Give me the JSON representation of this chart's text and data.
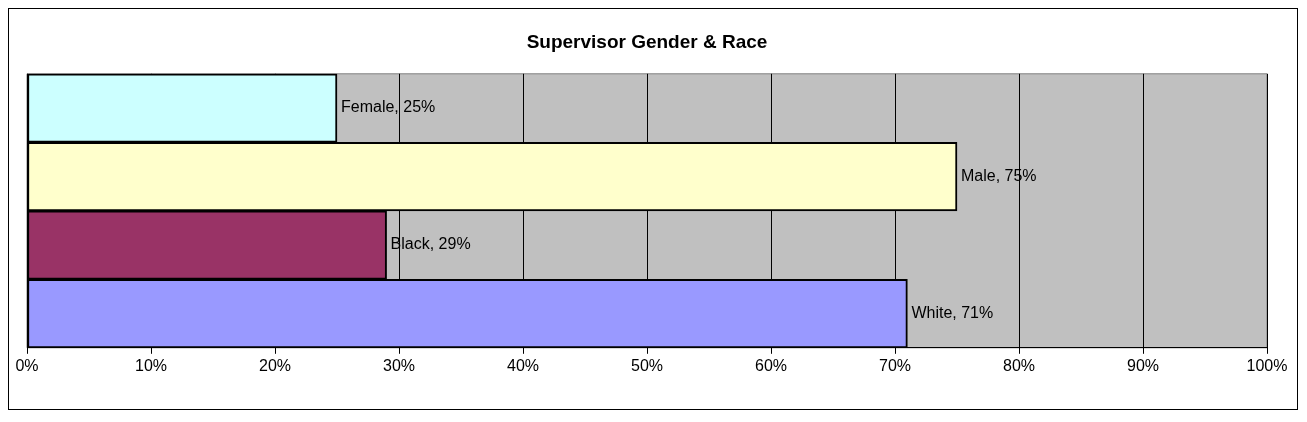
{
  "chart_data": {
    "type": "bar",
    "orientation": "horizontal",
    "title": "Supervisor Gender & Race",
    "categories": [
      null,
      null,
      null,
      null
    ],
    "values": [
      25,
      75,
      29,
      71
    ],
    "colors": [
      "#ccffff",
      "#ffffcc",
      "#993366",
      "#9999ff"
    ],
    "value_labels": [
      "Female, 25%",
      "Male, 75%",
      "Black, 29%",
      "White, 71%"
    ],
    "xlim": [
      0,
      100
    ],
    "xticks": [
      {
        "value": 0,
        "label": "0%"
      },
      {
        "value": 10,
        "label": "10%"
      },
      {
        "value": 20,
        "label": "20%"
      },
      {
        "value": 30,
        "label": "30%"
      },
      {
        "value": 40,
        "label": "40%"
      },
      {
        "value": 50,
        "label": "50%"
      },
      {
        "value": 60,
        "label": "60%"
      },
      {
        "value": 70,
        "label": "70%"
      },
      {
        "value": 80,
        "label": "80%"
      },
      {
        "value": 90,
        "label": "90%"
      },
      {
        "value": 100,
        "label": "100%"
      }
    ],
    "grid": "x",
    "tick_labels": "x",
    "legend": false
  }
}
